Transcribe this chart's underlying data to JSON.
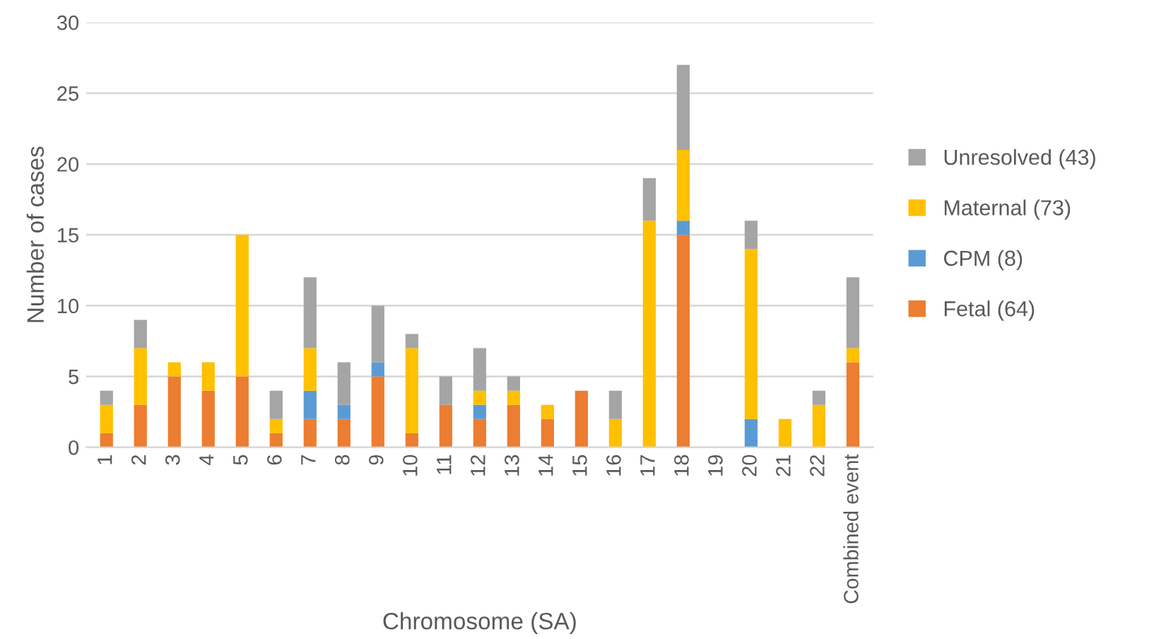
{
  "chart_data": {
    "type": "bar",
    "stacked": true,
    "xlabel": "Chromosome (SA)",
    "ylabel": "Number of cases",
    "categories": [
      "1",
      "2",
      "3",
      "4",
      "5",
      "6",
      "7",
      "8",
      "9",
      "10",
      "11",
      "12",
      "13",
      "14",
      "15",
      "16",
      "17",
      "18",
      "19",
      "20",
      "21",
      "22",
      "Combined event"
    ],
    "series": [
      {
        "name": "Fetal (64)",
        "color": "#ed7d31",
        "values": [
          1,
          3,
          5,
          4,
          5,
          1,
          2,
          2,
          5,
          1,
          3,
          2,
          3,
          2,
          4,
          0,
          0,
          15,
          0,
          0,
          0,
          0,
          6
        ]
      },
      {
        "name": "CPM (8)",
        "color": "#5b9bd5",
        "values": [
          0,
          0,
          0,
          0,
          0,
          0,
          2,
          1,
          1,
          0,
          0,
          1,
          0,
          0,
          0,
          0,
          0,
          1,
          0,
          2,
          0,
          0,
          0
        ]
      },
      {
        "name": "Maternal (73)",
        "color": "#ffc000",
        "values": [
          2,
          4,
          1,
          2,
          10,
          1,
          3,
          0,
          0,
          6,
          0,
          1,
          1,
          1,
          0,
          2,
          16,
          5,
          0,
          12,
          2,
          3,
          1
        ]
      },
      {
        "name": "Unresolved (43)",
        "color": "#a5a5a5",
        "values": [
          1,
          2,
          0,
          0,
          0,
          2,
          5,
          3,
          4,
          1,
          2,
          3,
          1,
          0,
          0,
          2,
          3,
          6,
          0,
          2,
          0,
          1,
          5
        ]
      }
    ],
    "ylim": [
      0,
      30
    ],
    "yticks": [
      0,
      5,
      10,
      15,
      20,
      25,
      30
    ],
    "grid": "y",
    "legend": "right"
  }
}
